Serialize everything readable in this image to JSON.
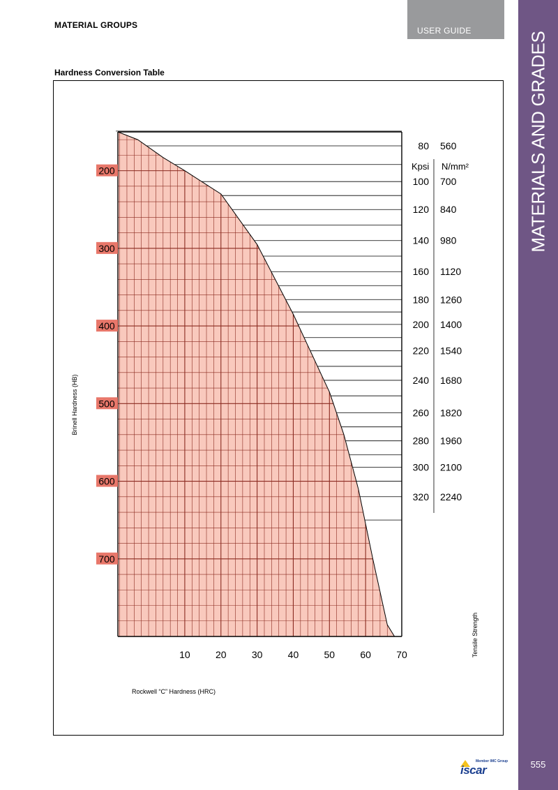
{
  "header": {
    "section_title": "MATERIAL GROUPS",
    "guide_label": "USER GUIDE",
    "side_title": "MATERIALS AND GRADES",
    "page_number": "555"
  },
  "logo": {
    "tagline": "Member IMC Group",
    "wordmark": "iscar"
  },
  "colors": {
    "side_band": "#6f5685",
    "guide_tab": "#999a9c",
    "grid_fill": "#f9c9bd",
    "grid_line": "#8a2a20",
    "brinell_label_bg": "#e8776a"
  },
  "chart_data": {
    "type": "area",
    "title": "Hardness Conversion Table",
    "xlabel": "Rockwell “C” Hardness (HRC)",
    "ylabel": "Brinell Hardness (HB)",
    "right_label": "Tensile Strength",
    "tensile_units": [
      "Kpsi",
      "N/mm²"
    ],
    "x_ticks": [
      "10",
      "20",
      "30",
      "40",
      "50",
      "60",
      "70"
    ],
    "y_ticks": [
      "200",
      "300",
      "400",
      "500",
      "600",
      "700"
    ],
    "xlim": [
      -8.5,
      70
    ],
    "ylim": [
      150,
      800
    ],
    "y_inverted": true,
    "grid": true,
    "curve": {
      "name": "",
      "x": [
        -8.5,
        -3,
        4,
        10,
        20,
        30,
        40,
        44,
        48,
        50,
        54,
        58,
        62,
        66,
        68
      ],
      "y": [
        150,
        160,
        183,
        200,
        230,
        295,
        385,
        425,
        465,
        485,
        540,
        610,
        700,
        785,
        800
      ]
    },
    "tensile_strength": [
      {
        "kpsi": "80",
        "nmm2": "560",
        "hb": 168
      },
      {
        "kpsi": "100",
        "nmm2": "700",
        "hb": 214
      },
      {
        "kpsi": "120",
        "nmm2": "840",
        "hb": 250
      },
      {
        "kpsi": "140",
        "nmm2": "980",
        "hb": 290
      },
      {
        "kpsi": "160",
        "nmm2": "1120",
        "hb": 330
      },
      {
        "kpsi": "180",
        "nmm2": "1260",
        "hb": 366
      },
      {
        "kpsi": "200",
        "nmm2": "1400",
        "hb": 398
      },
      {
        "kpsi": "220",
        "nmm2": "1540",
        "hb": 432
      },
      {
        "kpsi": "240",
        "nmm2": "1680",
        "hb": 470
      },
      {
        "kpsi": "260",
        "nmm2": "1820",
        "hb": 512
      },
      {
        "kpsi": "280",
        "nmm2": "1960",
        "hb": 548
      },
      {
        "kpsi": "300",
        "nmm2": "2100",
        "hb": 582
      },
      {
        "kpsi": "320",
        "nmm2": "2240",
        "hb": 620
      }
    ],
    "tensile_extra_lines_hb": [
      149,
      192,
      232,
      270,
      310,
      348,
      382,
      415,
      452,
      490,
      530,
      566,
      600,
      650
    ]
  }
}
